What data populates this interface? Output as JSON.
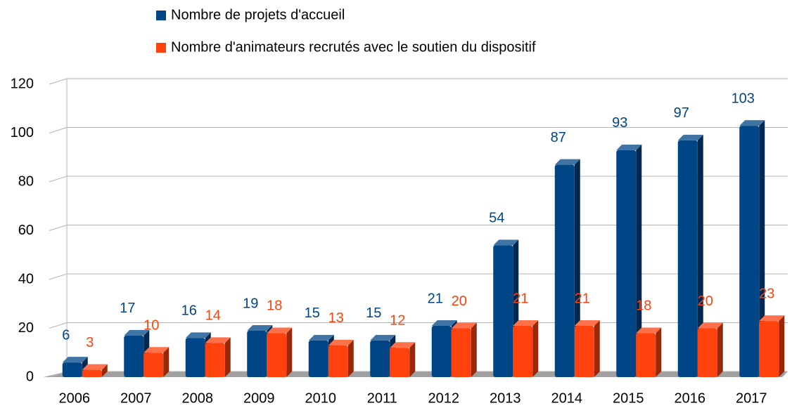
{
  "chart_data": {
    "type": "bar",
    "categories": [
      "2006",
      "2007",
      "2008",
      "2009",
      "2010",
      "2011",
      "2012",
      "2013",
      "2014",
      "2015",
      "2016",
      "2017"
    ],
    "series": [
      {
        "name": "Nombre de projets d'accueil",
        "color": "#004586",
        "values": [
          6,
          17,
          16,
          19,
          15,
          15,
          21,
          54,
          87,
          93,
          97,
          103
        ]
      },
      {
        "name": "Nombre d'animateurs recrutés avec le soutien du dispositif",
        "color": "#ff420e",
        "values": [
          3,
          10,
          14,
          18,
          13,
          12,
          20,
          21,
          21,
          18,
          20,
          23
        ]
      }
    ],
    "ylim": [
      0,
      120
    ],
    "yticks": [
      0,
      20,
      40,
      60,
      80,
      100,
      120
    ],
    "grid": true,
    "legend": "top"
  }
}
